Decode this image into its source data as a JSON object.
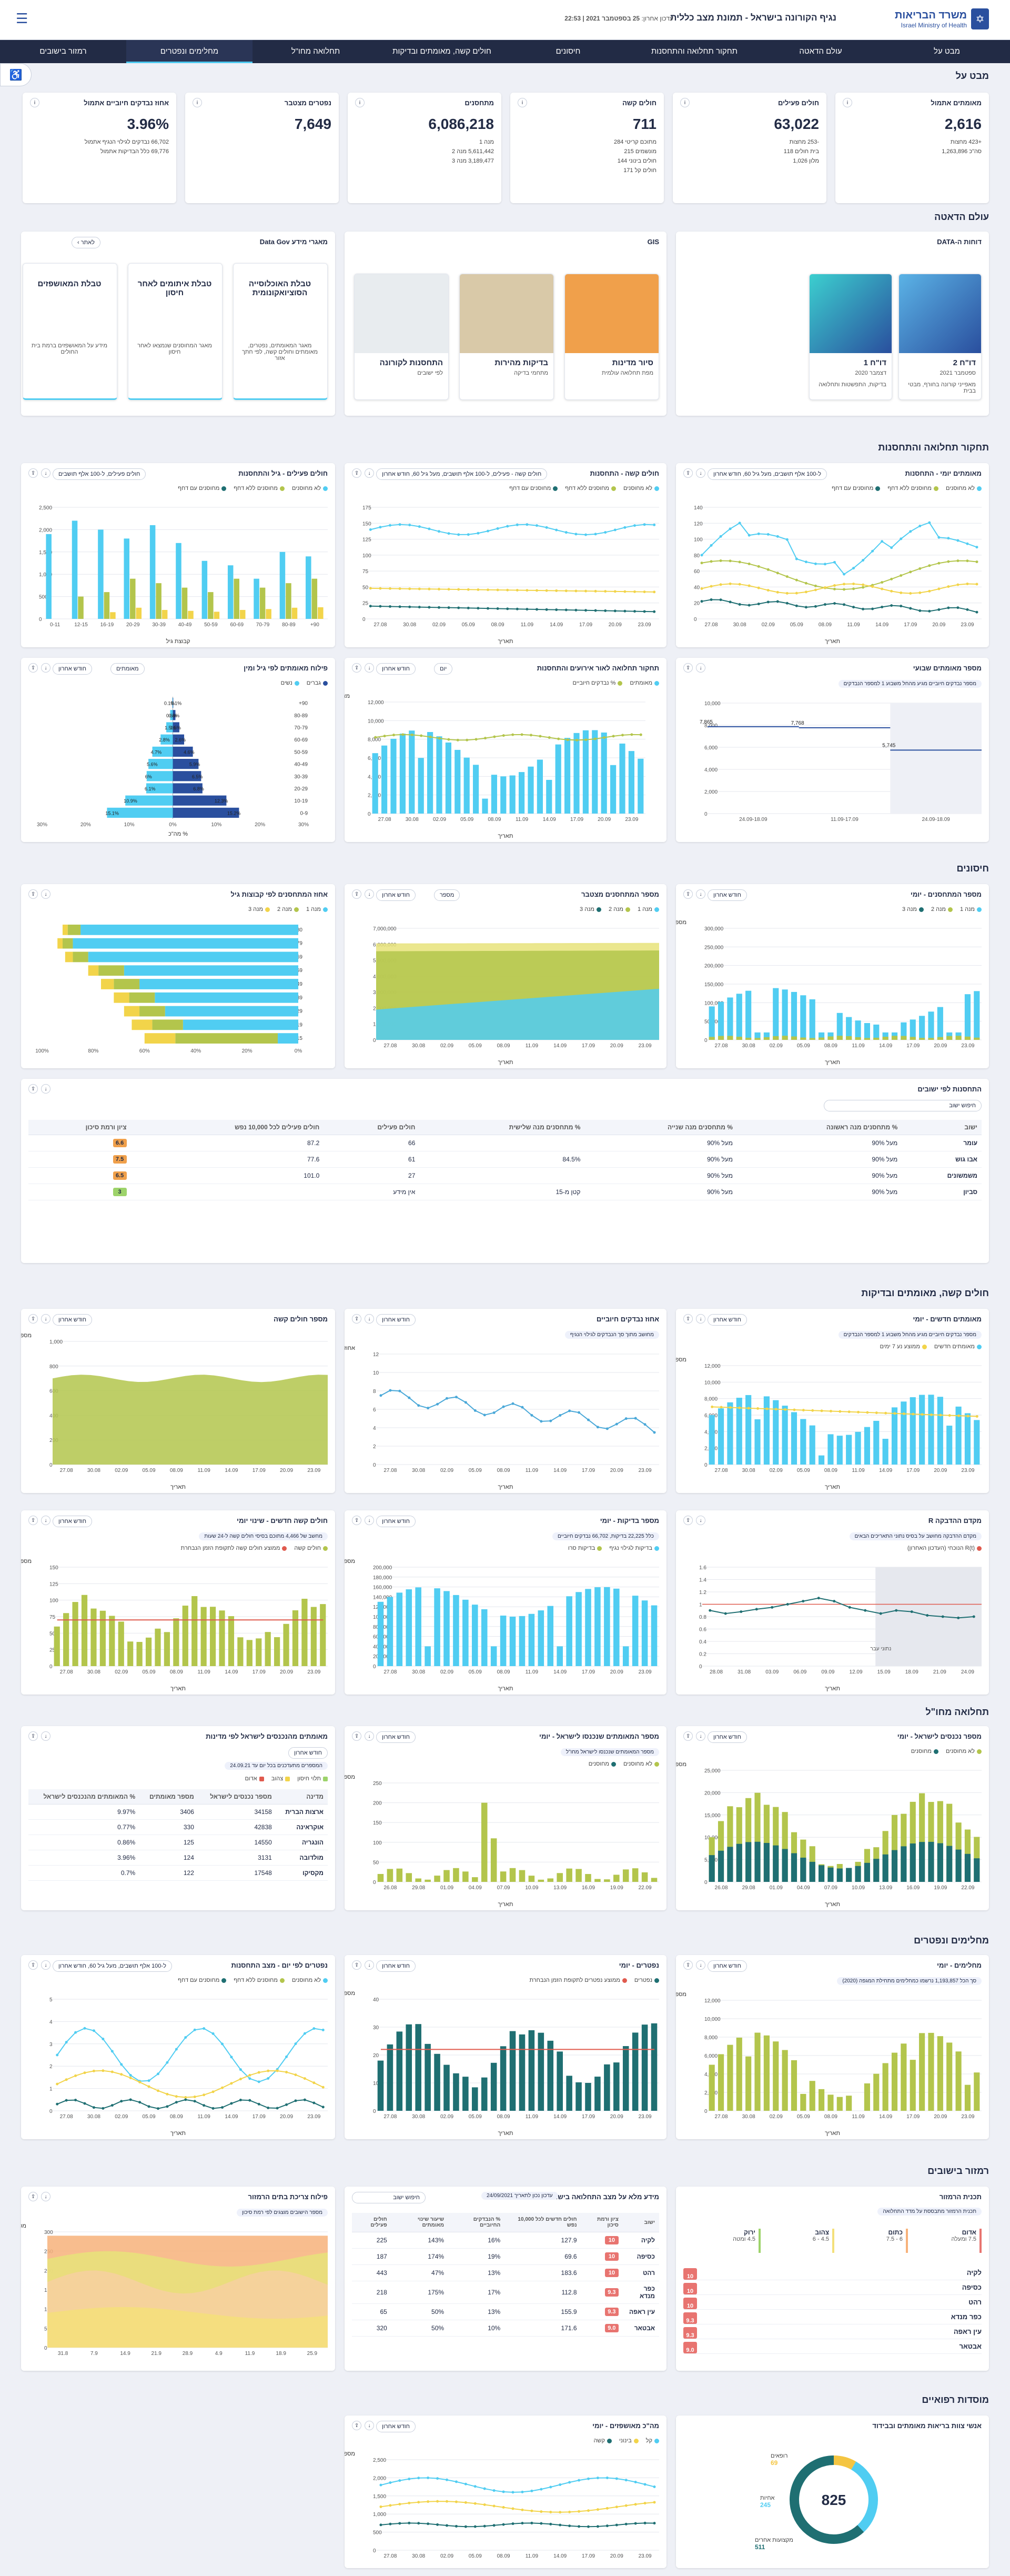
{
  "header": {
    "ministry_he": "משרד הבריאות",
    "ministry_en": "Israel Ministry of Health",
    "title": "נגיף הקורונה בישראל - תמונת מצב כללית",
    "update_prefix": "עדכון אחרון:",
    "update_value": "25 בספטמבר 2021 | 22:53",
    "menu_icon": "☰"
  },
  "nav": [
    "מבט על",
    "עולם הדאטה",
    "תחקור תחלואה והתחסנות",
    "חיסונים",
    "חולים קשה, מאומתים ובדיקות",
    "תחלואה מחו\"ל",
    "מחלימים ונפטרים",
    "רמזור בישובים"
  ],
  "nav_active": 6,
  "sections": {
    "overview": "מבט על",
    "data": "עולם הדאטה",
    "research": "תחקור תחלואה והתחסנות",
    "vaccines": "חיסונים",
    "severe": "חולים קשה, מאומתים ובדיקות",
    "abroad": "תחלואה מחו\"ל",
    "recovered": "מחלימים ונפטרים",
    "traffic": "רמזור בישובים",
    "medical": "מוסדות רפואיים"
  },
  "kpis": [
    {
      "title": "מאומתים אתמול",
      "value": "2,616",
      "lines": [
        "+423 מחצות",
        "סה\"כ 1,263,896"
      ]
    },
    {
      "title": "חולים פעילים",
      "value": "63,022",
      "lines": [
        "-253 מחצות",
        "בית חולים 118",
        "מלון 1,026"
      ]
    },
    {
      "title": "חולים קשה",
      "value": "711",
      "lines": [
        "מתוכם קריטי 284",
        "מונשמים 215",
        "חולים בינוני 144",
        "חולים קל 171"
      ]
    },
    {
      "title": "מתחסנים",
      "value": "6,086,218",
      "lines": [
        "מנה 1",
        "5,611,442 מנה 2",
        "3,189,477 מנה 3"
      ]
    },
    {
      "title": "נפטרים מצטבר",
      "value": "7,649",
      "lines": []
    },
    {
      "title": "אחוז נבדקים חיוביים אתמול",
      "value": "3.96%",
      "lines": [
        "66,702 נבדקים לגילוי הנגיף אתמול",
        "69,776 כלל הבדיקות אתמול"
      ]
    }
  ],
  "data_world": {
    "portal_title": "דוחות ה-DATA",
    "map_title": "GIS",
    "repo_title": "מאגרי מידע Data Gov",
    "back": "לאתר",
    "reports": [
      {
        "t": "דו\"ח 2",
        "s": "ספטמבר 2021",
        "d": "מאפייני קורונה בחורף, מבטי בבית"
      },
      {
        "t": "דו\"ח 1",
        "s": "דצמבר 2020",
        "d": "בדיקות, התפשטות ותחלואה"
      }
    ],
    "maps": [
      {
        "t": "סיור מדינות",
        "s": "מפת תחלואה עולמית"
      },
      {
        "t": "בדיקות מהירות",
        "s": "מתחמי בדיקה"
      },
      {
        "t": "התחסנות לקורונה",
        "s": "לפי ישובים"
      }
    ],
    "repos": [
      {
        "t": "טבלת האוכלוסייה הסוציואקונומית",
        "d": "מאגר המאומתים, נפטרים, מאומתים וחולים קשה, לפי חתך אזור"
      },
      {
        "t": "טבלת איתומים לאחר חיסון",
        "d": "מאגר המחוסנים שנמצאו לאחר חיסון"
      },
      {
        "t": "טבלת המאושפזים",
        "d": "מידע על המאושפזים ברמת בית החולים"
      }
    ]
  },
  "research": {
    "c1": {
      "title": "מאומתים יומי - התחסנות",
      "dd": "ל-100 אלף תושבים, מעל גיל 60, חודש אחרון",
      "legend": [
        "לא מחוסנים",
        "מחוסנים ללא דחף",
        "מחוסנים עם דחף"
      ],
      "ylabel": "מקרים מאומתים",
      "xlabel": "תאריך"
    },
    "c2": {
      "title": "חולים קשה - התחסנות",
      "dd": "חולים קשה - פעילים, ל-100 אלף תושבים, מעל גיל 60, חודש אחרון",
      "legend": [
        "לא מחוסנים",
        "מחוסנים ללא דחף",
        "מחוסנים עם דחף"
      ],
      "ylabel": "חולים קשה פעילים",
      "xlabel": "תאריך"
    },
    "c3": {
      "title": "חולים פעילים - גיל והתחסנות",
      "dd": "חולים פעילים, ל-100 אלף תושבים",
      "legend": [
        "לא מחוסנים",
        "מחוסנים ללא דחף",
        "מחוסנים עם דחף"
      ],
      "ylabel": "שיעור חולים פעילים",
      "xlabel": "קבוצת גיל"
    },
    "c4": {
      "title": "מספר מאומתים שבועי",
      "note": "מספר נבדקים חיוביים מגיע מהחל משבוע 1 למספר הנבדקים",
      "ylabel": "מספר מאומתים",
      "labels": [
        "7,865",
        "7,768",
        "5,745"
      ]
    },
    "c5": {
      "title": "תחקור תחלואה לאור אירועים והתחסנות",
      "dd1": "חודש אחרון",
      "dd2": "יום",
      "legend": [
        "מאומתים",
        "% נבדקים חיוביים"
      ],
      "ylabel": "מאומתים יומי",
      "xlabel": "תאריך"
    },
    "c6": {
      "title": "פילוח מאומתים לפי גיל ומין",
      "dd1": "חודש אחרון",
      "dd2": "מאומתים",
      "legend": [
        "גברים",
        "נשים"
      ],
      "xlabel": "% מה\"כ",
      "ylabel": "קבוצות גיל"
    }
  },
  "vaccines": {
    "c1": {
      "title": "מספר המתחסנים - יומי",
      "dd": "חודש אחרון",
      "legend": [
        "מנה 1",
        "מנה 2",
        "מנה 3"
      ],
      "ylabel": "מספר מתחסנים",
      "xlabel": "תאריך"
    },
    "c2": {
      "title": "מספר המתחסנים מצטבר",
      "dd1": "חודש אחרון",
      "dd2": "מספר",
      "legend": [
        "מנה 1",
        "מנה 2",
        "מנה 3"
      ],
      "xlabel": "תאריך"
    },
    "c3": {
      "title": "אחוז המתחסנים לפי קבוצות גיל",
      "legend": [
        "מנה 1",
        "מנה 2",
        "מנה 3"
      ],
      "ylabel": "קבוצת גיל",
      "xlabel": "% מה\"כ"
    },
    "table": {
      "title": "התחסנות לפי ישובים",
      "search": "חיפוש ישוב",
      "headers": [
        "ישוב",
        "% מתחסנים מנה ראשונה",
        "% מתחסנים מנה שנייה",
        "% מתחסנים מנה שלישית",
        "חולים פעילים",
        "חולים פעילים לכל 10,000 נפש",
        "ציון ורמת סיכון"
      ],
      "rows": [
        [
          "עומר",
          "מעל 90%",
          "מעל 90%",
          "",
          "66",
          "87.2",
          "6.6"
        ],
        [
          "אבו גוש",
          "מעל 90%",
          "מעל 90%",
          "84.5%",
          "61",
          "77.6",
          "7.5"
        ],
        [
          "משמשונים",
          "מעל 90%",
          "מעל 90%",
          "",
          "27",
          "101.0",
          "6.5"
        ],
        [
          "סביון",
          "מעל 90%",
          "מעל 90%",
          "קטן מ-15",
          "אין מידע",
          "",
          "3"
        ]
      ]
    }
  },
  "severe": {
    "c1": {
      "title": "מאומתים חדשים - יומי",
      "note": "מספר נבדקים חיוביים מגיע מהחל משבוע 1 למספר הנבדקים",
      "legend": [
        "מאומתים חדשים",
        "ממוצע נע 7 ימים"
      ],
      "dd": "חודש אחרון",
      "ylabel": "מספר מאומתים",
      "xlabel": "תאריך"
    },
    "c2": {
      "title": "אחוז נבדקים חיוביים",
      "note": "מחושב מתוך סך הנבדקים לגילוי הנגיף",
      "dd": "חודש אחרון",
      "ylabel": "אחוז חיוביים",
      "xlabel": "תאריך"
    },
    "c3": {
      "title": "מספר חולים קשה",
      "dd": "חודש אחרון",
      "ylabel": "מספר חולים",
      "xlabel": "תאריך"
    },
    "c4": {
      "title": "מקדם ההדבקה R",
      "note": "מקדם ההדבקה מחושב על בסיס נתוני התאריכים הבאים",
      "legend": [
        "R(t) הנוכחי (העדכון האחרון)"
      ],
      "shade": "נתוני עבר",
      "xlabel": "תאריך"
    },
    "c5": {
      "title": "מספר בדיקות - יומי",
      "note": "כלל 22,225 בדיקות, 66,702 נבדקים חיוביים",
      "legend": [
        "בדיקות לגילוי נגיף",
        "בדיקות סרו"
      ],
      "dd": "חודש אחרון",
      "ylabel": "מספר בדיקות",
      "xlabel": "תאריך"
    },
    "c6": {
      "title": "חולים קשה חדשים - שינוי יומי",
      "note": "מחשב של 4,466 מתוכם בסיסי חולים קשה ל-24 שעות",
      "legend": [
        "חולים קשה",
        "ממוצע חולים קשה לתקופת הזמן הנבחרת"
      ],
      "dd": "חודש אחרון",
      "ylabel": "מספר חולים",
      "xlabel": "תאריך"
    }
  },
  "abroad": {
    "c1": {
      "title": "מספר נכנסים לישראל - יומי",
      "dd": "חודש אחרון",
      "legend": [
        "לא מחוסנים",
        "מחוסנים"
      ],
      "ylabel": "מספר נכנסים",
      "xlabel": "תאריך"
    },
    "c2": {
      "title": "מספר המאומתים שנכנסו לישראל - יומי",
      "note": "מספר המאומתים שנכנסו לישראל מחו\"ל",
      "legend": [
        "לא מחוסנים",
        "מחוסנים"
      ],
      "dd": "חודש אחרון",
      "ylabel": "מספר המאומתים",
      "xlabel": "תאריך"
    },
    "c3": {
      "title": "מאומתים מהנכנסים לישראל לפי מדינות",
      "dd": "חודש אחרון",
      "note": "המספרים מתעדכנים בכל יום עד 24.09.21",
      "legend": [
        "תלוי חיסון",
        "צהוב",
        "אדום"
      ],
      "headers": [
        "מדינה",
        "מספר נכנסים לישראל",
        "מספר מאומתים",
        "% המאומתים מהנכנסים לישראל"
      ],
      "rows": [
        [
          "ארצות הברית",
          "34158",
          "3406",
          "9.97%"
        ],
        [
          "אוקראינה",
          "42838",
          "330",
          "0.77%"
        ],
        [
          "הונגריה",
          "14550",
          "125",
          "0.86%"
        ],
        [
          "מולדובה",
          "3131",
          "124",
          "3.96%"
        ],
        [
          "מקסיקו",
          "17548",
          "122",
          "0.7%"
        ]
      ]
    }
  },
  "recovered": {
    "c1": {
      "title": "מחלימים - יומי",
      "note": "סך הכל 1,193,857 נרשמו כמחלימים מתחילת המגפה (2020)",
      "dd": "חודש אחרון",
      "ylabel": "מספר מחלימים",
      "xlabel": "תאריך"
    },
    "c2": {
      "title": "נפטרים - יומי",
      "legend": [
        "נפטרים",
        "ממוצע נפטרים לתקופת הזמן הנבחרת"
      ],
      "dd": "חודש אחרון",
      "ylabel": "מספר נפטרים",
      "xlabel": "תאריך"
    },
    "c3": {
      "title": "נפטרים לפי יום - מצב התחסנות",
      "dd": "ל-100 אלף תושבים, מעל גיל 60, חודש אחרון",
      "legend": [
        "לא מחוסנים",
        "מחוסנים ללא דחף",
        "מחוסנים עם דחף"
      ],
      "xlabel": "תאריך"
    }
  },
  "traffic": {
    "c1": {
      "title": "תכנית הרמזור",
      "note": "תכנית הרמזור מתבססת על מדד התחלואה",
      "legend": [
        {
          "t": "אדום",
          "r": "7.5 ומעלה"
        },
        {
          "t": "כתום",
          "r": "6 - 7.5"
        },
        {
          "t": "צהוב",
          "r": "4.5 - 6"
        },
        {
          "t": "ירוק",
          "r": "4.5 ומטה"
        }
      ]
    },
    "c2": {
      "title": "מידע מלא על מצב התחלואה בישוב",
      "date": "עדכון נכון לתאריך 24/09/2021",
      "search": "חיפוש ישוב",
      "headers": [
        "ישוב",
        "ציון ורמת סיכון",
        "חולים חדשים לכל 10,000 נפש",
        "% הנבדקים החיוביים",
        "שיעור שינוי מאומתים",
        "חולים פעילים"
      ],
      "rows": [
        [
          "לקיה",
          "10",
          "127.9",
          "16%",
          "143%",
          "225"
        ],
        [
          "כסיפה",
          "10",
          "69.6",
          "19%",
          "174%",
          "187"
        ],
        [
          "רהט",
          "10",
          "183.6",
          "13%",
          "47%",
          "443"
        ],
        [
          "כפר מנדא",
          "9.3",
          "112.8",
          "17%",
          "175%",
          "218"
        ],
        [
          "עין ראפה",
          "9.3",
          "155.9",
          "13%",
          "50%",
          "65"
        ],
        [
          "אבטאר",
          "9.0",
          "171.6",
          "10%",
          "50%",
          "320"
        ]
      ]
    },
    "c3": {
      "title": "פילוח צריכת בתים הרמזור",
      "note": "מספר הישובים מוצגים לפי רמת סיכון",
      "ylabel": "מספר ישובים"
    }
  },
  "medical": {
    "c1": {
      "title": "אנשי צוות בריאות מאומתים ובבידוד",
      "total": "825",
      "labels": [
        {
          "t": "רופאים",
          "v": "69"
        },
        {
          "t": "אחיות",
          "v": "245"
        },
        {
          "t": "מקצועות אחרים",
          "v": "511"
        }
      ]
    },
    "c2": {
      "title": "מה\"כ מאושפזים - יומי",
      "dd": "חודש אחרון",
      "legend": [
        "קל",
        "בינוני",
        "קשה"
      ],
      "ylabel": "מספר מאושפזים"
    }
  },
  "colors": {
    "navy": "#222b45",
    "cyan": "#50cdf2",
    "green": "#b3c54c",
    "yellow": "#f2d44a",
    "teal": "#1f6f72",
    "red": "#e05a4e"
  }
}
